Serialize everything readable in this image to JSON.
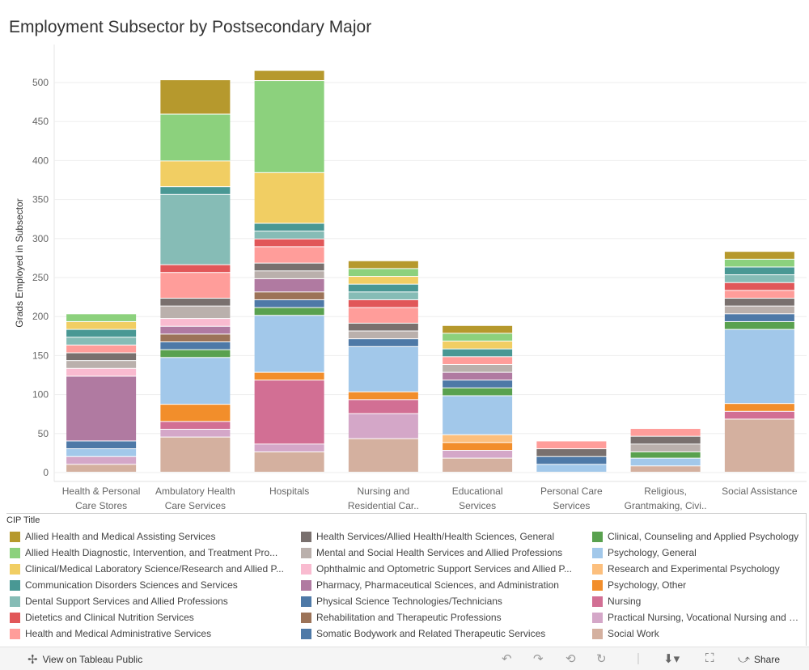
{
  "chart_data": {
    "type": "bar",
    "stacked": true,
    "title": "Employment Subsector by Postsecondary Major",
    "xlabel": "",
    "ylabel": "Grads Employed in Subsector",
    "ylim": [
      -10,
      535
    ],
    "yticks": [
      0,
      50,
      100,
      150,
      200,
      250,
      300,
      350,
      400,
      450,
      500
    ],
    "categories": [
      [
        "Health & Personal",
        "Care Stores"
      ],
      [
        "Ambulatory Health",
        "Care Services"
      ],
      [
        "Hospitals"
      ],
      [
        "Nursing and",
        "Residential Car.."
      ],
      [
        "Educational",
        "Services"
      ],
      [
        "Personal Care",
        "Services"
      ],
      [
        "Religious,",
        "Grantmaking, Civi.."
      ],
      [
        "Social Assistance"
      ]
    ],
    "series": [
      {
        "name": "Social Work",
        "color": "#d4b09f",
        "values": [
          10,
          45,
          26,
          43,
          18,
          0,
          8,
          68
        ]
      },
      {
        "name": "Practical Nursing, Vocational Nursing and Nursing Assistants",
        "color": "#d4a7c8",
        "values": [
          10,
          10,
          10,
          32,
          10,
          0,
          0,
          0
        ]
      },
      {
        "name": "Nursing",
        "color": "#d26f94",
        "values": [
          0,
          10,
          82,
          18,
          0,
          0,
          0,
          10
        ]
      },
      {
        "name": "Psychology, Other",
        "color": "#f28e2b",
        "values": [
          0,
          22,
          10,
          10,
          10,
          0,
          0,
          10
        ]
      },
      {
        "name": "Research and Experimental Psychology",
        "color": "#fcbf7d",
        "values": [
          0,
          0,
          0,
          0,
          10,
          0,
          0,
          0
        ]
      },
      {
        "name": "Psychology, General",
        "color": "#a2c8ea",
        "values": [
          10,
          60,
          73,
          58,
          50,
          10,
          10,
          95
        ]
      },
      {
        "name": "Clinical, Counseling and Applied Psychology",
        "color": "#59a14f",
        "values": [
          0,
          10,
          10,
          0,
          10,
          0,
          8,
          10
        ]
      },
      {
        "name": "Somatic Bodywork and Related Therapeutic Services",
        "color": "#4e79a7",
        "values": [
          0,
          0,
          0,
          0,
          0,
          0,
          0,
          0
        ]
      },
      {
        "name": "Physical Science Technologies/Technicians",
        "color": "#4e79a7",
        "values": [
          10,
          10,
          10,
          10,
          10,
          10,
          0,
          10
        ]
      },
      {
        "name": "Rehabilitation and Therapeutic Professions",
        "color": "#9c7358",
        "values": [
          0,
          10,
          10,
          0,
          0,
          0,
          0,
          0
        ]
      },
      {
        "name": "Pharmacy, Pharmaceutical Sciences, and Administration",
        "color": "#b07aa1",
        "values": [
          83,
          10,
          17,
          0,
          10,
          0,
          0,
          0
        ]
      },
      {
        "name": "Ophthalmic and Optometric Support Services and Allied Professions",
        "color": "#f9bbd0",
        "values": [
          10,
          10,
          0,
          0,
          0,
          0,
          0,
          0
        ]
      },
      {
        "name": "Mental and Social Health Services and Allied Professions",
        "color": "#bab0ac",
        "values": [
          10,
          16,
          10,
          10,
          10,
          0,
          10,
          10
        ]
      },
      {
        "name": "Health Services/Allied Health/Health Sciences, General",
        "color": "#79706e",
        "values": [
          10,
          10,
          10,
          10,
          0,
          10,
          10,
          10
        ]
      },
      {
        "name": "Health and Medical Administrative Services",
        "color": "#ff9d9a",
        "values": [
          10,
          33,
          21,
          20,
          10,
          10,
          10,
          10
        ]
      },
      {
        "name": "Dietetics and Clinical Nutrition Services",
        "color": "#e15759",
        "values": [
          0,
          10,
          10,
          10,
          0,
          0,
          0,
          10
        ]
      },
      {
        "name": "Dental Support Services and Allied Professions",
        "color": "#86bcb6",
        "values": [
          10,
          90,
          10,
          10,
          0,
          0,
          0,
          10
        ]
      },
      {
        "name": "Communication Disorders Sciences and Services",
        "color": "#499894",
        "values": [
          10,
          10,
          10,
          10,
          10,
          0,
          0,
          10
        ]
      },
      {
        "name": "Clinical/Medical Laboratory Science/Research and Allied Professions",
        "color": "#f1ce63",
        "values": [
          10,
          33,
          65,
          10,
          10,
          0,
          0,
          0
        ]
      },
      {
        "name": "Allied Health Diagnostic, Intervention, and Treatment Professions",
        "color": "#8cd17d",
        "values": [
          10,
          60,
          118,
          10,
          10,
          0,
          0,
          10
        ]
      },
      {
        "name": "Allied Health and Medical Assisting Services",
        "color": "#b6992d",
        "values": [
          0,
          44,
          13,
          10,
          10,
          0,
          0,
          10
        ]
      }
    ]
  },
  "legend": {
    "title": "CIP Title",
    "items": [
      {
        "label": "Allied Health and Medical Assisting Services",
        "color": "#b6992d"
      },
      {
        "label": "Allied Health Diagnostic, Intervention, and Treatment Pro...",
        "color": "#8cd17d"
      },
      {
        "label": "Clinical/Medical Laboratory Science/Research and Allied P...",
        "color": "#f1ce63"
      },
      {
        "label": "Communication Disorders Sciences and Services",
        "color": "#499894"
      },
      {
        "label": "Dental Support Services and Allied Professions",
        "color": "#86bcb6"
      },
      {
        "label": "Dietetics and Clinical Nutrition Services",
        "color": "#e15759"
      },
      {
        "label": "Health and Medical Administrative Services",
        "color": "#ff9d9a"
      },
      {
        "label": "Health Services/Allied Health/Health Sciences, General",
        "color": "#79706e"
      },
      {
        "label": "Mental and Social Health Services and Allied Professions",
        "color": "#bab0ac"
      },
      {
        "label": "Ophthalmic and Optometric Support Services and Allied P...",
        "color": "#f9bbd0"
      },
      {
        "label": "Pharmacy, Pharmaceutical Sciences, and Administration",
        "color": "#b07aa1"
      },
      {
        "label": "Physical Science Technologies/Technicians",
        "color": "#4e79a7"
      },
      {
        "label": "Rehabilitation and Therapeutic Professions",
        "color": "#9c7358"
      },
      {
        "label": "Somatic Bodywork and Related Therapeutic Services",
        "color": "#4e79a7"
      },
      {
        "label": "Clinical, Counseling and Applied Psychology",
        "color": "#59a14f"
      },
      {
        "label": "Psychology, General",
        "color": "#a2c8ea"
      },
      {
        "label": "Research and Experimental Psychology",
        "color": "#fcbf7d"
      },
      {
        "label": "Psychology, Other",
        "color": "#f28e2b"
      },
      {
        "label": "Nursing",
        "color": "#d26f94"
      },
      {
        "label": "Practical Nursing, Vocational Nursing and Nursing Assistants",
        "color": "#d4a7c8"
      },
      {
        "label": "Social Work",
        "color": "#d4b09f"
      }
    ]
  },
  "footer": {
    "view_label": "View on Tableau Public",
    "share_label": "Share",
    "icons": [
      "undo-icon",
      "redo-icon",
      "revert-icon",
      "refresh-icon",
      "download-icon",
      "fullscreen-icon",
      "share-icon"
    ]
  }
}
